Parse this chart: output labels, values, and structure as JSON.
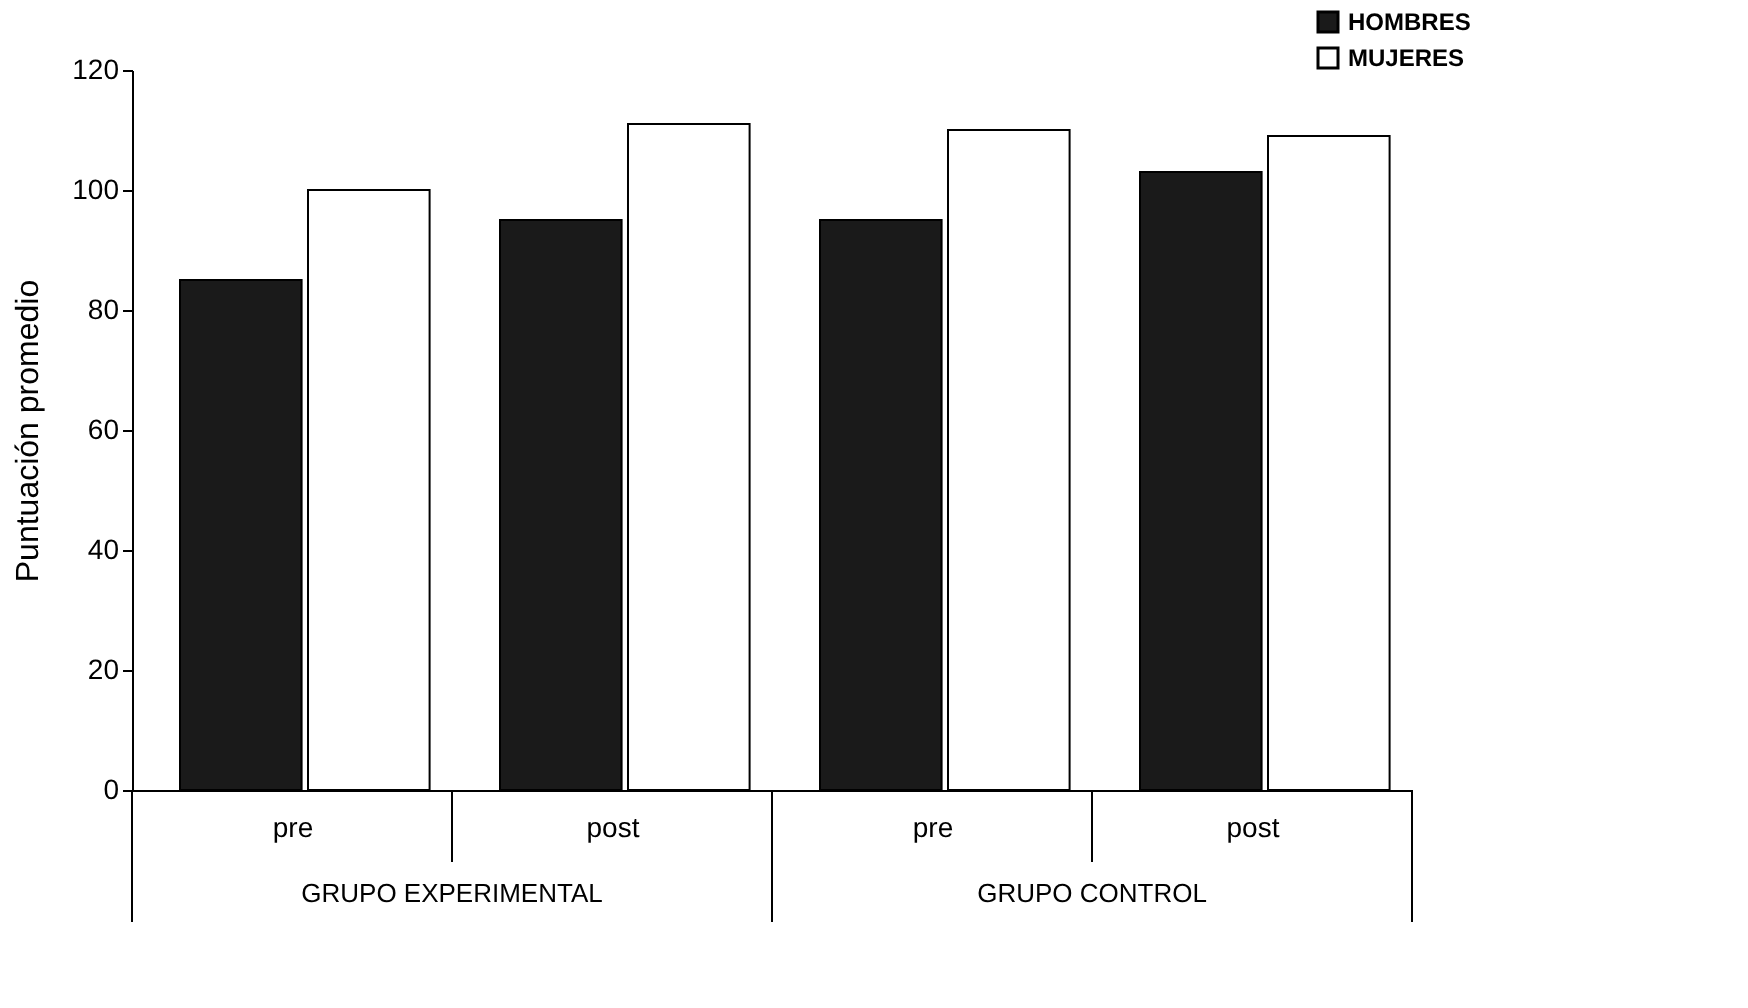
{
  "chart_data": {
    "type": "bar",
    "ylabel": "Puntuación promedio",
    "categories": [
      "pre",
      "post",
      "pre",
      "post"
    ],
    "annotations": [
      "GRUPO EXPERIMENTAL",
      "GRUPO CONTROL"
    ],
    "series": [
      {
        "name": "HOMBRES",
        "color": "#1a1a1a",
        "values": [
          85,
          95,
          95,
          103
        ]
      },
      {
        "name": "MUJERES",
        "color": "#ffffff",
        "values": [
          100,
          111,
          110,
          109
        ]
      }
    ],
    "ylim": [
      0,
      120
    ],
    "yticks": [
      0,
      20,
      40,
      60,
      80,
      100,
      120
    ],
    "grid": false,
    "legend": "top right"
  }
}
